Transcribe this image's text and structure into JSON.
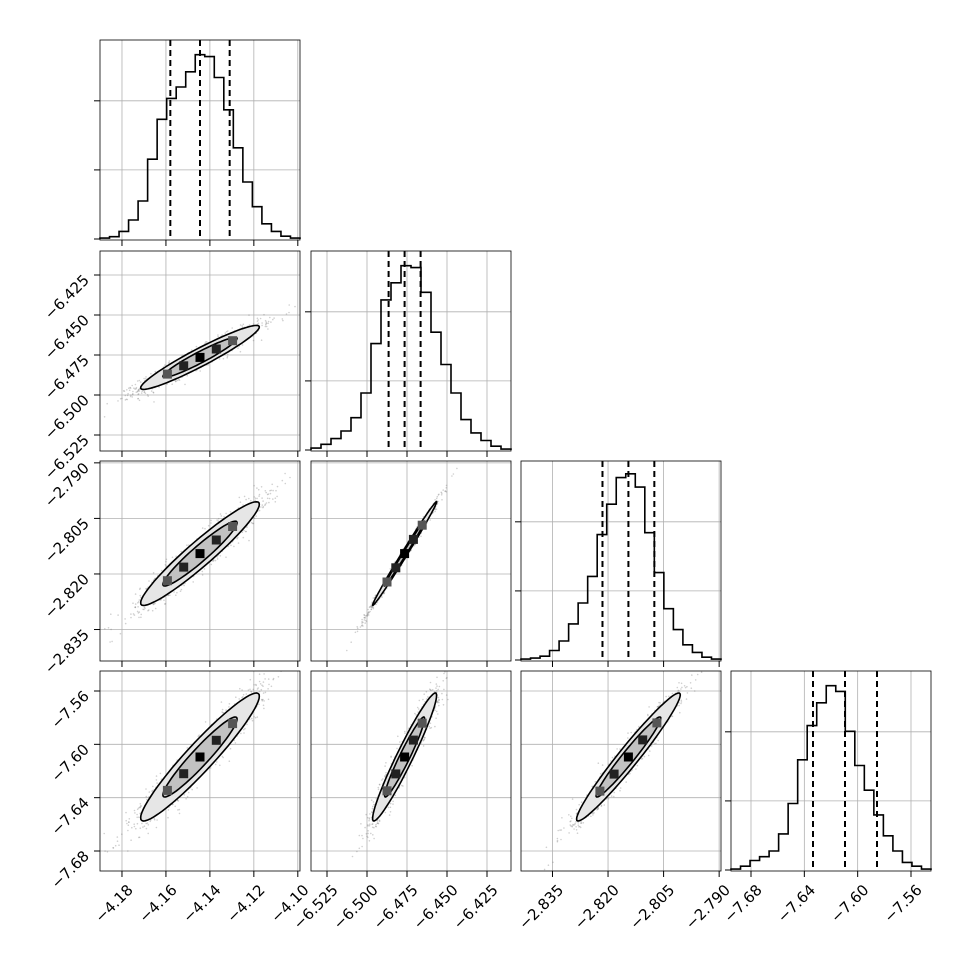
{
  "chart_data": {
    "type": "corner",
    "parameters": [
      {
        "xlim": [
          -4.19,
          -4.099
        ],
        "ylim": [
          -6.535,
          -6.41
        ],
        "quantiles": [
          -4.158,
          -4.1445,
          -4.131
        ],
        "x_ticks": [
          -4.18,
          -4.16,
          -4.14,
          -4.12,
          -4.1
        ],
        "x_tick_labels": [
          "−4.18",
          "−4.16",
          "−4.14",
          "−4.12",
          "−4.10"
        ],
        "hist": [
          0.005,
          0.012,
          0.04,
          0.1,
          0.2,
          0.42,
          0.63,
          0.74,
          0.8,
          0.88,
          0.97,
          0.96,
          0.85,
          0.68,
          0.48,
          0.3,
          0.17,
          0.08,
          0.04,
          0.015,
          0.005
        ]
      },
      {
        "xlim": [
          -6.535,
          -6.41
        ],
        "ylim": [
          -2.8385,
          -2.7885
        ],
        "quantiles": [
          -6.4865,
          -6.4765,
          -6.4665
        ],
        "x_ticks": [
          -6.525,
          -6.5,
          -6.475,
          -6.45,
          -6.425
        ],
        "x_tick_labels": [
          "−6.525",
          "−6.500",
          "−6.475",
          "−6.450",
          "−6.425"
        ],
        "y_ticks": [
          -6.525,
          -6.5,
          -6.475,
          -6.45,
          -6.425
        ],
        "y_tick_labels": [
          "−6.525",
          "−6.500",
          "−6.475",
          "−6.450",
          "−6.425"
        ],
        "hist": [
          0.01,
          0.03,
          0.06,
          0.1,
          0.17,
          0.3,
          0.56,
          0.79,
          0.88,
          0.97,
          0.96,
          0.83,
          0.62,
          0.45,
          0.3,
          0.16,
          0.09,
          0.05,
          0.02,
          0.005
        ]
      },
      {
        "xlim": [
          -2.8435,
          -2.7895
        ],
        "ylim": [
          -7.695,
          -7.545
        ],
        "quantiles": [
          -2.8215,
          -2.8145,
          -2.8075
        ],
        "x_ticks": [
          -2.835,
          -2.82,
          -2.805,
          -2.79
        ],
        "x_tick_labels": [
          "−2.835",
          "−2.820",
          "−2.805",
          "−2.790"
        ],
        "y_ticks": [
          -2.835,
          -2.82,
          -2.805,
          -2.79
        ],
        "y_tick_labels": [
          "−2.835",
          "−2.820",
          "−2.805",
          "−2.790"
        ],
        "hist": [
          0.005,
          0.01,
          0.02,
          0.05,
          0.1,
          0.19,
          0.3,
          0.44,
          0.66,
          0.82,
          0.96,
          0.98,
          0.91,
          0.67,
          0.46,
          0.27,
          0.16,
          0.08,
          0.04,
          0.015,
          0.005
        ]
      },
      {
        "xlim": [
          -7.695,
          -7.545
        ],
        "quantiles": [
          -7.6335,
          -7.6095,
          -7.5855
        ],
        "x_ticks": [
          -7.68,
          -7.64,
          -7.6,
          -7.56
        ],
        "x_tick_labels": [
          "−7.68",
          "−7.64",
          "−7.60",
          "−7.56"
        ],
        "y_ticks": [
          -7.68,
          -7.64,
          -7.6,
          -7.56
        ],
        "y_tick_labels": [
          "−7.68",
          "−7.64",
          "−7.60",
          "−7.56"
        ],
        "hist": [
          0.005,
          0.02,
          0.05,
          0.07,
          0.1,
          0.19,
          0.35,
          0.58,
          0.76,
          0.88,
          0.97,
          0.94,
          0.73,
          0.55,
          0.42,
          0.29,
          0.18,
          0.1,
          0.04,
          0.02,
          0.005
        ]
      }
    ],
    "correlations": {
      "1-0": 0.95,
      "2-0": 0.95,
      "2-1": 0.995,
      "3-0": 0.95,
      "3-1": 0.96,
      "3-2": 0.97
    },
    "grid": true
  }
}
